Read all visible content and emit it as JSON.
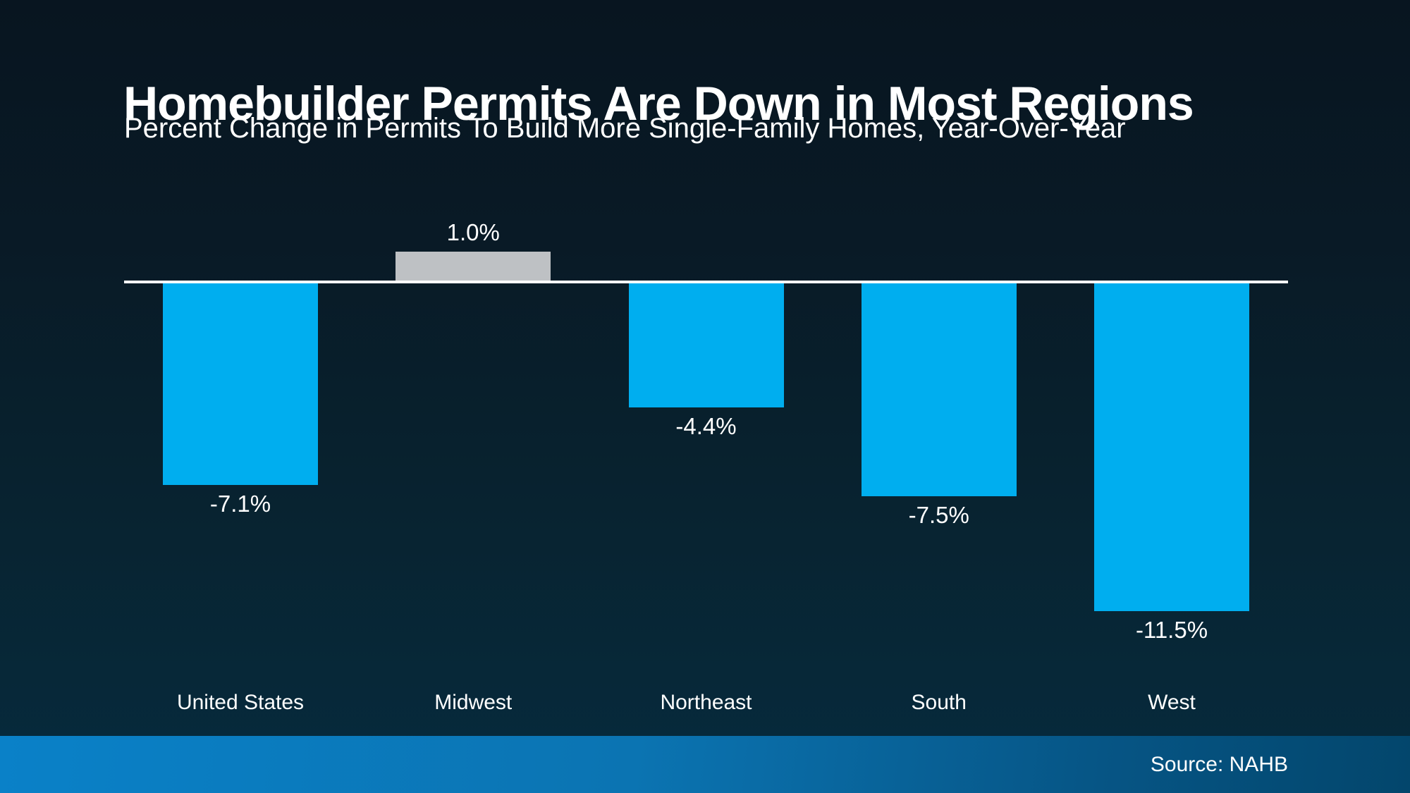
{
  "header": {
    "title": "Homebuilder Permits Are Down in Most Regions",
    "subtitle": "Percent Change in Permits To Build More Single-Family Homes, Year-Over-Year"
  },
  "footer": {
    "source": "Source: NAHB"
  },
  "colors": {
    "negative_bar": "#00AEEF",
    "positive_bar": "#BEC1C4",
    "baseline": "#FFFFFF",
    "text": "#FFFFFF",
    "background_top": "#081520",
    "background_bottom": "#062A3E",
    "footer_gradient_left": "#0A81C8",
    "footer_gradient_right": "#03466C"
  },
  "chart_data": {
    "type": "bar",
    "title": "Homebuilder Permits Are Down in Most Regions",
    "subtitle": "Percent Change in Permits To Build More Single-Family Homes, Year-Over-Year",
    "categories": [
      "United States",
      "Midwest",
      "Northeast",
      "South",
      "West"
    ],
    "values": [
      -7.1,
      1.0,
      -4.4,
      -7.5,
      -11.5
    ],
    "value_labels": [
      "-7.1%",
      "1.0%",
      "-4.4%",
      "-7.5%",
      "-11.5%"
    ],
    "unit": "%",
    "xlabel": "",
    "ylabel": "",
    "ylim": [
      -12.5,
      2.5
    ],
    "baseline": 0,
    "grid": false,
    "legend": false,
    "bar_color_rule": "negative values blue (#00AEEF), positive values gray (#BEC1C4)",
    "source": "Source: NAHB"
  }
}
